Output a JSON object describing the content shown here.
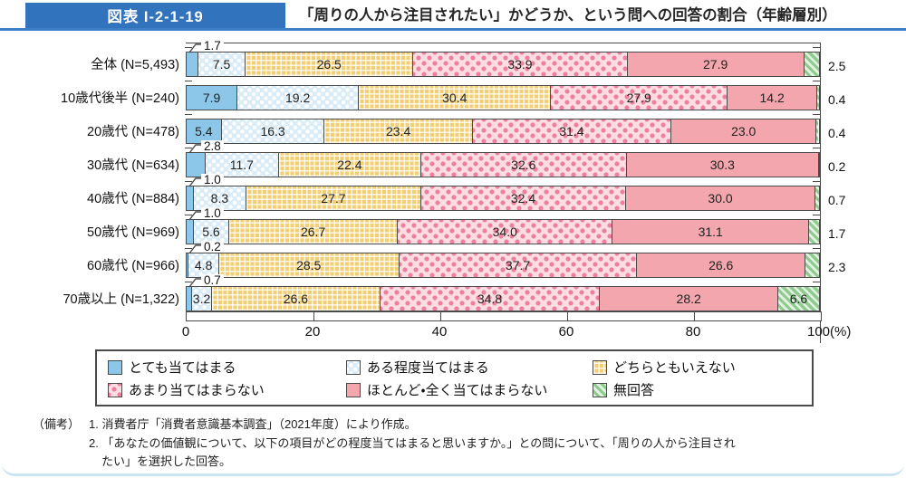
{
  "header": {
    "figure_label": "図表 I-2-1-19",
    "title": "「周りの人から注目されたい」かどうか、という問への回答の割合（年齢層別）"
  },
  "colors": {
    "header_blue": "#3273BE",
    "rule_blue": "#3E7EC5",
    "bar_border": "#4A4A4A",
    "page_edge_blue": "#C9E4F3"
  },
  "chart_data": {
    "type": "bar",
    "orientation": "horizontal",
    "stacked": true,
    "value_unit": "%",
    "x_axis": {
      "range": [
        0,
        100
      ],
      "ticks": [
        0,
        20,
        40,
        60,
        80,
        100
      ],
      "tick_labels": [
        "0",
        "20",
        "40",
        "60",
        "80",
        "100(%)"
      ]
    },
    "series": [
      {
        "name": "とても当てはまる",
        "fill": "#8CC6E8",
        "pattern": "solid"
      },
      {
        "name": "ある程度当てはまる",
        "fill": "#D9ECF8",
        "pattern": "white-dots"
      },
      {
        "name": "どちらともいえない",
        "fill": "#F2CF74",
        "pattern": "white-grid"
      },
      {
        "name": "あまり当てはまらない",
        "fill": "#FBDDE2",
        "pattern": "pink-dots",
        "dot_color": "#EE7FA0"
      },
      {
        "name": "ほとんど・全く当てはまらない",
        "fill": "#F3A6AD",
        "pattern": "solid"
      },
      {
        "name": "無回答",
        "fill": "#8FCB8F",
        "pattern": "diagonal-stripes"
      }
    ],
    "rows": [
      {
        "label": "全体 (N=5,493)",
        "values": [
          "1.7",
          "7.5",
          "26.5",
          "33.9",
          "27.9",
          "2.5"
        ]
      },
      {
        "label": "10歳代後半 (N=240)",
        "values": [
          "7.9",
          "19.2",
          "30.4",
          "27.9",
          "14.2",
          "0.4"
        ]
      },
      {
        "label": "20歳代 (N=478)",
        "values": [
          "5.4",
          "16.3",
          "23.4",
          "31.4",
          "23.0",
          "0.4"
        ]
      },
      {
        "label": "30歳代 (N=634)",
        "values": [
          "2.8",
          "11.7",
          "22.4",
          "32.6",
          "30.3",
          "0.2"
        ]
      },
      {
        "label": "40歳代 (N=884)",
        "values": [
          "1.0",
          "8.3",
          "27.7",
          "32.4",
          "30.0",
          "0.7"
        ]
      },
      {
        "label": "50歳代 (N=969)",
        "values": [
          "1.0",
          "5.6",
          "26.7",
          "34.0",
          "31.1",
          "1.7"
        ]
      },
      {
        "label": "60歳代 (N=966)",
        "values": [
          "0.2",
          "4.8",
          "28.5",
          "37.7",
          "26.6",
          "2.3"
        ]
      },
      {
        "label": "70歳以上 (N=1,322)",
        "values": [
          "0.7",
          "3.2",
          "26.6",
          "34.8",
          "28.2",
          "6.6"
        ]
      }
    ]
  },
  "notes": {
    "prefix": "（備考）",
    "line1": "1. 消費者庁「消費者意識基本調査」（2021年度）により作成。",
    "line2": "2. 「あなたの価値観について、以下の項目がどの程度当てはまると思いますか。」との問について、「周りの人から注目され",
    "line3": "たい」を選択した回答。"
  }
}
